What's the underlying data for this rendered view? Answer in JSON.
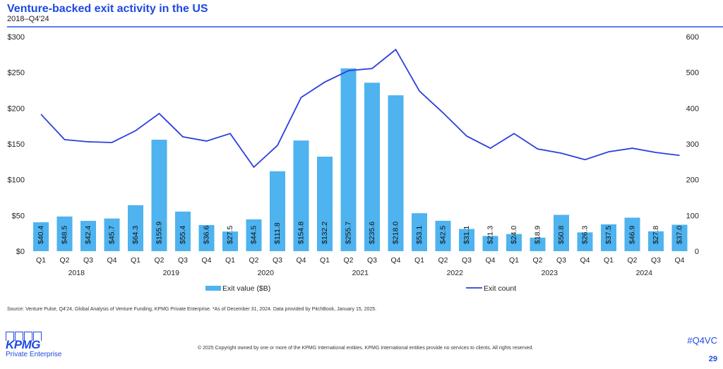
{
  "header": {
    "title": "Venture-backed exit activity in the US",
    "subtitle": "2018–Q4'24"
  },
  "chart_data": {
    "type": "bar+line",
    "categories": [
      "Q1",
      "Q2",
      "Q3",
      "Q4",
      "Q1",
      "Q2",
      "Q3",
      "Q4",
      "Q1",
      "Q2",
      "Q3",
      "Q4",
      "Q1",
      "Q2",
      "Q3",
      "Q4",
      "Q1",
      "Q2",
      "Q3",
      "Q4",
      "Q1",
      "Q2",
      "Q3",
      "Q4",
      "Q1",
      "Q2",
      "Q3",
      "Q4"
    ],
    "years": [
      "2018",
      "2019",
      "2020",
      "2021",
      "2022",
      "2023",
      "2024"
    ],
    "series": [
      {
        "name": "Exit value ($B)",
        "type": "bar",
        "axis": "left",
        "color": "#4eb3ef",
        "values": [
          40.4,
          48.5,
          42.4,
          45.7,
          64.3,
          155.9,
          55.4,
          36.6,
          27.5,
          44.5,
          111.8,
          154.8,
          132.2,
          255.7,
          235.6,
          218.0,
          53.1,
          42.5,
          31.1,
          21.3,
          24.0,
          18.9,
          50.8,
          26.3,
          37.5,
          46.9,
          27.8,
          37.0
        ],
        "labels": [
          "$40.4",
          "$48.5",
          "$42.4",
          "$45.7",
          "$64.3",
          "$155.9",
          "$55.4",
          "$36.6",
          "$27.5",
          "$44.5",
          "$111.8",
          "$154.8",
          "$132.2",
          "$255.7",
          "$235.6",
          "$218.0",
          "$53.1",
          "$42.5",
          "$31.1",
          "$21.3",
          "$24.0",
          "$18.9",
          "$50.8",
          "$26.3",
          "$37.5",
          "$46.9",
          "$27.8",
          "$37.0"
        ]
      },
      {
        "name": "Exit count",
        "type": "line",
        "axis": "right",
        "color": "#2b3fe0",
        "values": [
          383,
          312,
          306,
          304,
          337,
          385,
          320,
          308,
          329,
          235,
          296,
          430,
          473,
          505,
          511,
          564,
          448,
          387,
          322,
          288,
          329,
          286,
          274,
          256,
          278,
          288,
          276,
          268
        ]
      }
    ],
    "left_axis": {
      "ylim": [
        0,
        300
      ],
      "ticks": [
        "$0",
        "$50",
        "$100",
        "$150",
        "$200",
        "$250",
        "$300"
      ]
    },
    "right_axis": {
      "ylim": [
        0,
        600
      ],
      "ticks": [
        "0",
        "100",
        "200",
        "300",
        "400",
        "500",
        "600"
      ]
    },
    "legend": "bottom"
  },
  "footer": {
    "source": "Source: Venture Pulse, Q4'24, Global Analysis of Venture Funding, KPMG Private Enterprise. *As of December 31, 2024. Data provided by PitchBook, January 15, 2025.",
    "copyright": "© 2025 Copyright owned by one or more of the KPMG International entities. KPMG International entities provide no services to clients. All rights reserved.",
    "logo_text": "KPMG",
    "logo_sub": "Private Enterprise",
    "hashtag": "#Q4VC",
    "page": "29"
  }
}
